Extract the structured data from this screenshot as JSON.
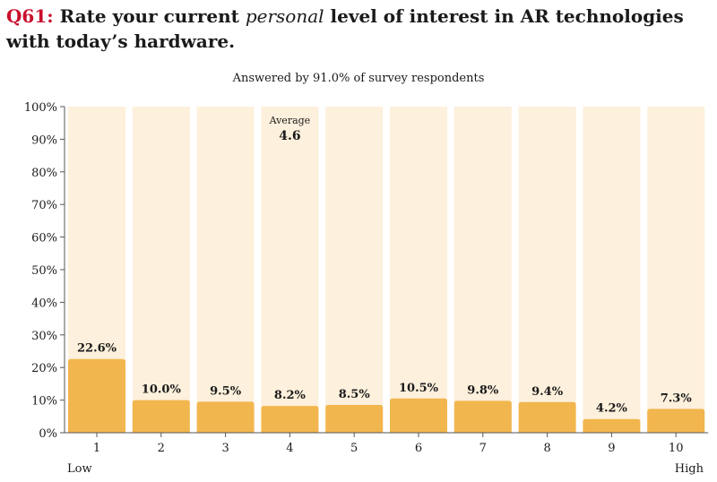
{
  "header": {
    "qnum": "Q61:",
    "title_pre": "Rate your current",
    "title_em": "personal",
    "title_post": "level of interest in AR technologies with today’s hardware.",
    "subtitle": "Answered by 91.0% of survey respondents"
  },
  "colors": {
    "bar": "#f2b64e",
    "background_bar": "#fdf0dc",
    "accent": "#c8102e",
    "text": "#1a1a1a"
  },
  "chart_data": {
    "type": "bar",
    "categories": [
      "1",
      "2",
      "3",
      "4",
      "5",
      "6",
      "7",
      "8",
      "9",
      "10"
    ],
    "values": [
      22.6,
      10.0,
      9.5,
      8.2,
      8.5,
      10.5,
      9.8,
      9.4,
      4.2,
      7.3
    ],
    "value_labels": [
      "22.6%",
      "10.0%",
      "9.5%",
      "8.2%",
      "8.5%",
      "10.5%",
      "9.8%",
      "9.4%",
      "4.2%",
      "7.3%"
    ],
    "ylim": [
      0,
      100
    ],
    "yticks": [
      "0%",
      "10%",
      "20%",
      "30%",
      "40%",
      "50%",
      "60%",
      "70%",
      "80%",
      "90%",
      "100%"
    ],
    "x_end_labels": {
      "low": "Low",
      "high": "High"
    },
    "average": {
      "label": "Average",
      "value": "4.6",
      "category": "4"
    },
    "grid": false
  }
}
